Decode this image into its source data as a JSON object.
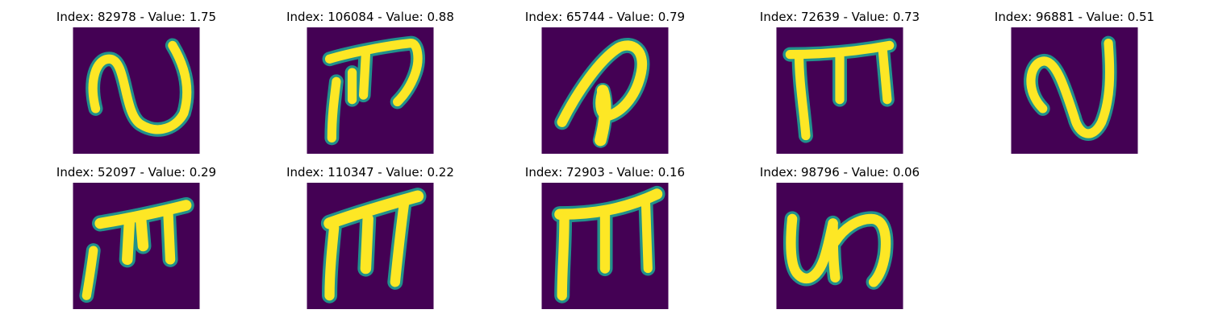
{
  "figure": {
    "background": "#ffffff",
    "image_background_color": "#440154",
    "stroke_color": "#fde725",
    "edge_color": "#21918c",
    "panels": [
      {
        "title": "Index: 82978 - Value: 1.75",
        "glyph": "cursive-n-icon"
      },
      {
        "title": "Index: 106084 - Value: 0.88",
        "glyph": "handwritten-pi-like-icon"
      },
      {
        "title": "Index: 65744 - Value: 0.79",
        "glyph": "handwritten-p-loop-icon"
      },
      {
        "title": "Index: 72639 - Value: 0.73",
        "glyph": "handwritten-m-frame-icon"
      },
      {
        "title": "Index: 96881 - Value: 0.51",
        "glyph": "cursive-n-icon"
      },
      {
        "title": "Index: 52097 - Value: 0.29",
        "glyph": "handwritten-pi-like-icon"
      },
      {
        "title": "Index: 110347 - Value: 0.22",
        "glyph": "handwritten-m-frame-icon"
      },
      {
        "title": "Index: 72903 - Value: 0.16",
        "glyph": "handwritten-m-frame-icon"
      },
      {
        "title": "Index: 98796 - Value: 0.06",
        "glyph": "handwritten-un-icon"
      }
    ]
  }
}
